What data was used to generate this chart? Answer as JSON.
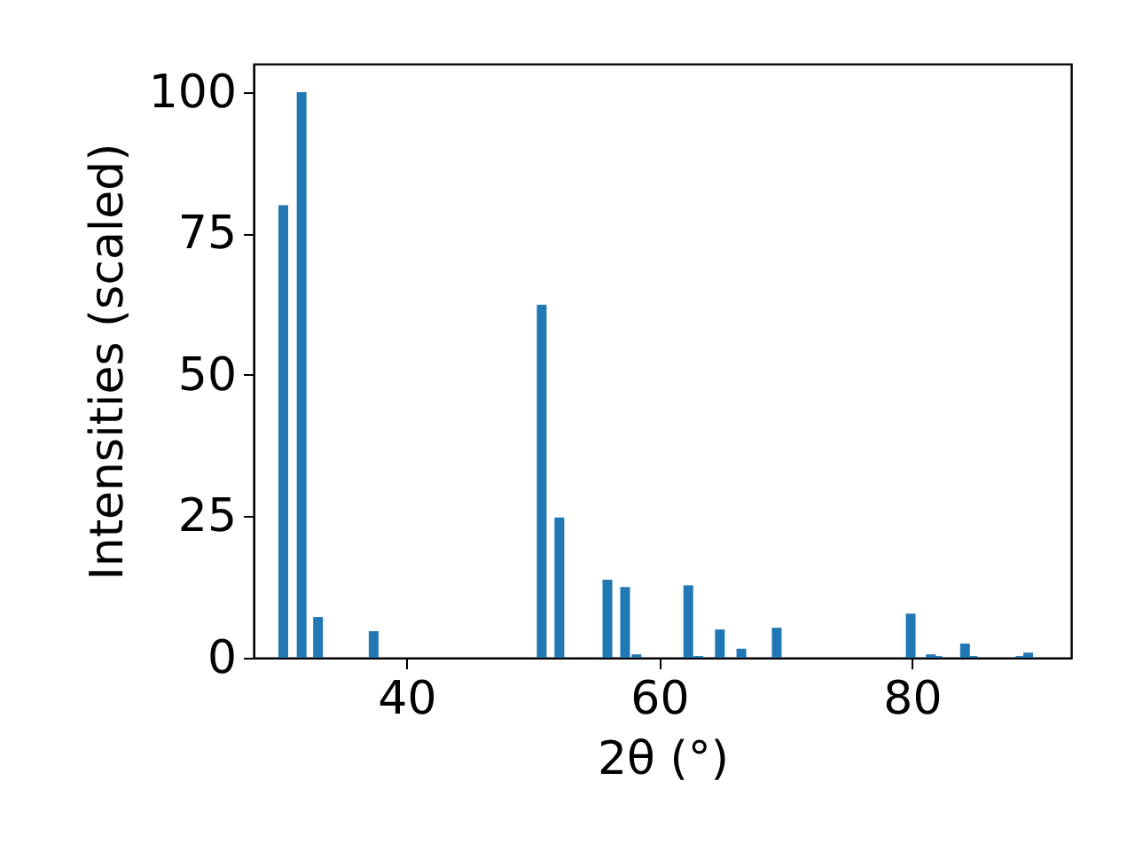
{
  "chart_data": {
    "type": "bar",
    "xlabel": "2θ (°)",
    "ylabel": "Intensities (scaled)",
    "x": [
      30.25,
      31.7,
      33.0,
      37.4,
      50.7,
      52.1,
      55.9,
      57.3,
      58.2,
      62.3,
      63.1,
      64.8,
      66.5,
      69.3,
      79.9,
      81.5,
      82.0,
      84.2,
      84.8,
      88.6,
      89.2
    ],
    "values": [
      80,
      100,
      7.2,
      4.7,
      62.4,
      24.8,
      13.8,
      12.5,
      0.6,
      12.8,
      0.3,
      5.0,
      1.6,
      5.3,
      7.8,
      0.6,
      0.3,
      2.5,
      0.3,
      0.3,
      0.9
    ],
    "color": "#1f77b4",
    "xlim": [
      27.9,
      92.6
    ],
    "xticks": [
      40,
      60,
      80
    ],
    "ylim": [
      0,
      105
    ],
    "yticks": [
      0,
      25,
      50,
      75,
      100
    ],
    "grid": false
  }
}
